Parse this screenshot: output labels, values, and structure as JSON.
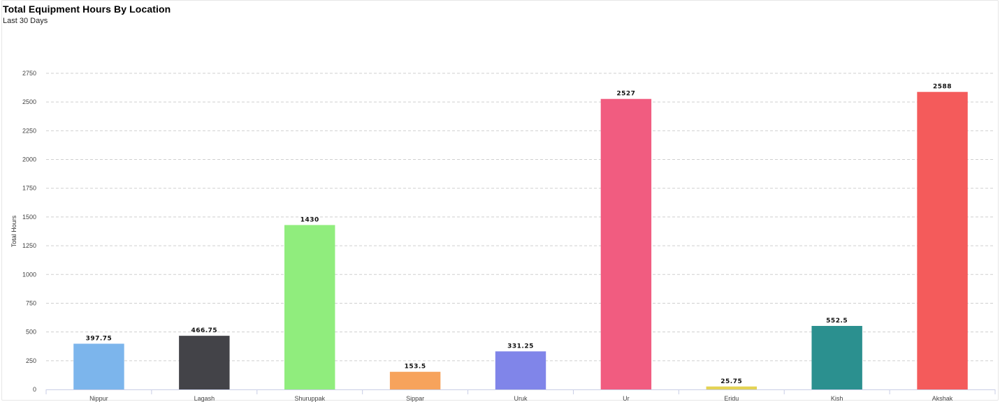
{
  "header": {
    "title": "Total Equipment Hours By Location",
    "subtitle": "Last 30 Days"
  },
  "chart_data": {
    "type": "bar",
    "title": "Total Equipment Hours By Location",
    "subtitle": "Last 30 Days",
    "xlabel": "",
    "ylabel": "Total Hours",
    "ylim": [
      0,
      2750
    ],
    "yticks": [
      0,
      250,
      500,
      750,
      1000,
      1250,
      1500,
      1750,
      2000,
      2250,
      2500,
      2750
    ],
    "grid": true,
    "categories": [
      "Nippur",
      "Lagash",
      "Shuruppak",
      "Sippar",
      "Uruk",
      "Ur",
      "Eridu",
      "Kish",
      "Akshak"
    ],
    "values": [
      397.75,
      466.75,
      1430,
      153.5,
      331.25,
      2527,
      25.75,
      552.5,
      2588
    ],
    "data_labels": [
      "397.75",
      "466.75",
      "1430",
      "153.5",
      "331.25",
      "2527",
      "25.75",
      "552.5",
      "2588"
    ],
    "colors": [
      "#7cb5ec",
      "#434348",
      "#90ed7d",
      "#f7a35c",
      "#8085e9",
      "#f15c80",
      "#e4d354",
      "#2b908f",
      "#f45b5b"
    ]
  }
}
